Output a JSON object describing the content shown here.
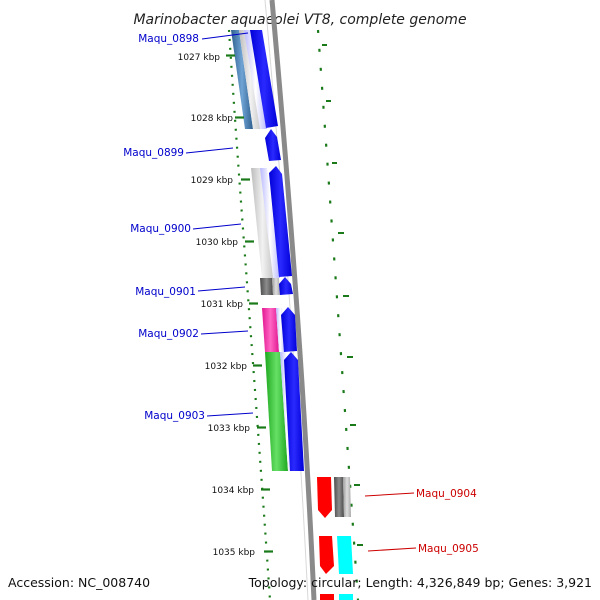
{
  "title": "Marinobacter aquaeolei VT8, complete genome",
  "footer": {
    "accession": "Accession: NC_008740",
    "topology": "Topology: circular; Length: 4,326,849 bp; Genes: 3,921"
  },
  "colors": {
    "forward_label": "#0000cc",
    "reverse_label": "#cc0000",
    "tick": "#1a7a1a",
    "backbone": "#8a8a8a",
    "cds_forward": "#0000ff",
    "cds_reverse": "#ff0000",
    "cyan_feature": "#00ffff",
    "gene_grey": "#6a6a6a"
  },
  "kbp_ticks": [
    {
      "label": "1027 kbp"
    },
    {
      "label": "1028 kbp"
    },
    {
      "label": "1029 kbp"
    },
    {
      "label": "1030 kbp"
    },
    {
      "label": "1031 kbp"
    },
    {
      "label": "1032 kbp"
    },
    {
      "label": "1033 kbp"
    },
    {
      "label": "1034 kbp"
    },
    {
      "label": "1035 kbp"
    }
  ],
  "genes": [
    {
      "label": "Maqu_0898",
      "strand": "forward"
    },
    {
      "label": "Maqu_0899",
      "strand": "forward"
    },
    {
      "label": "Maqu_0900",
      "strand": "forward"
    },
    {
      "label": "Maqu_0901",
      "strand": "forward"
    },
    {
      "label": "Maqu_0902",
      "strand": "forward"
    },
    {
      "label": "Maqu_0903",
      "strand": "forward"
    },
    {
      "label": "Maqu_0904",
      "strand": "reverse"
    },
    {
      "label": "Maqu_0905",
      "strand": "reverse"
    }
  ]
}
